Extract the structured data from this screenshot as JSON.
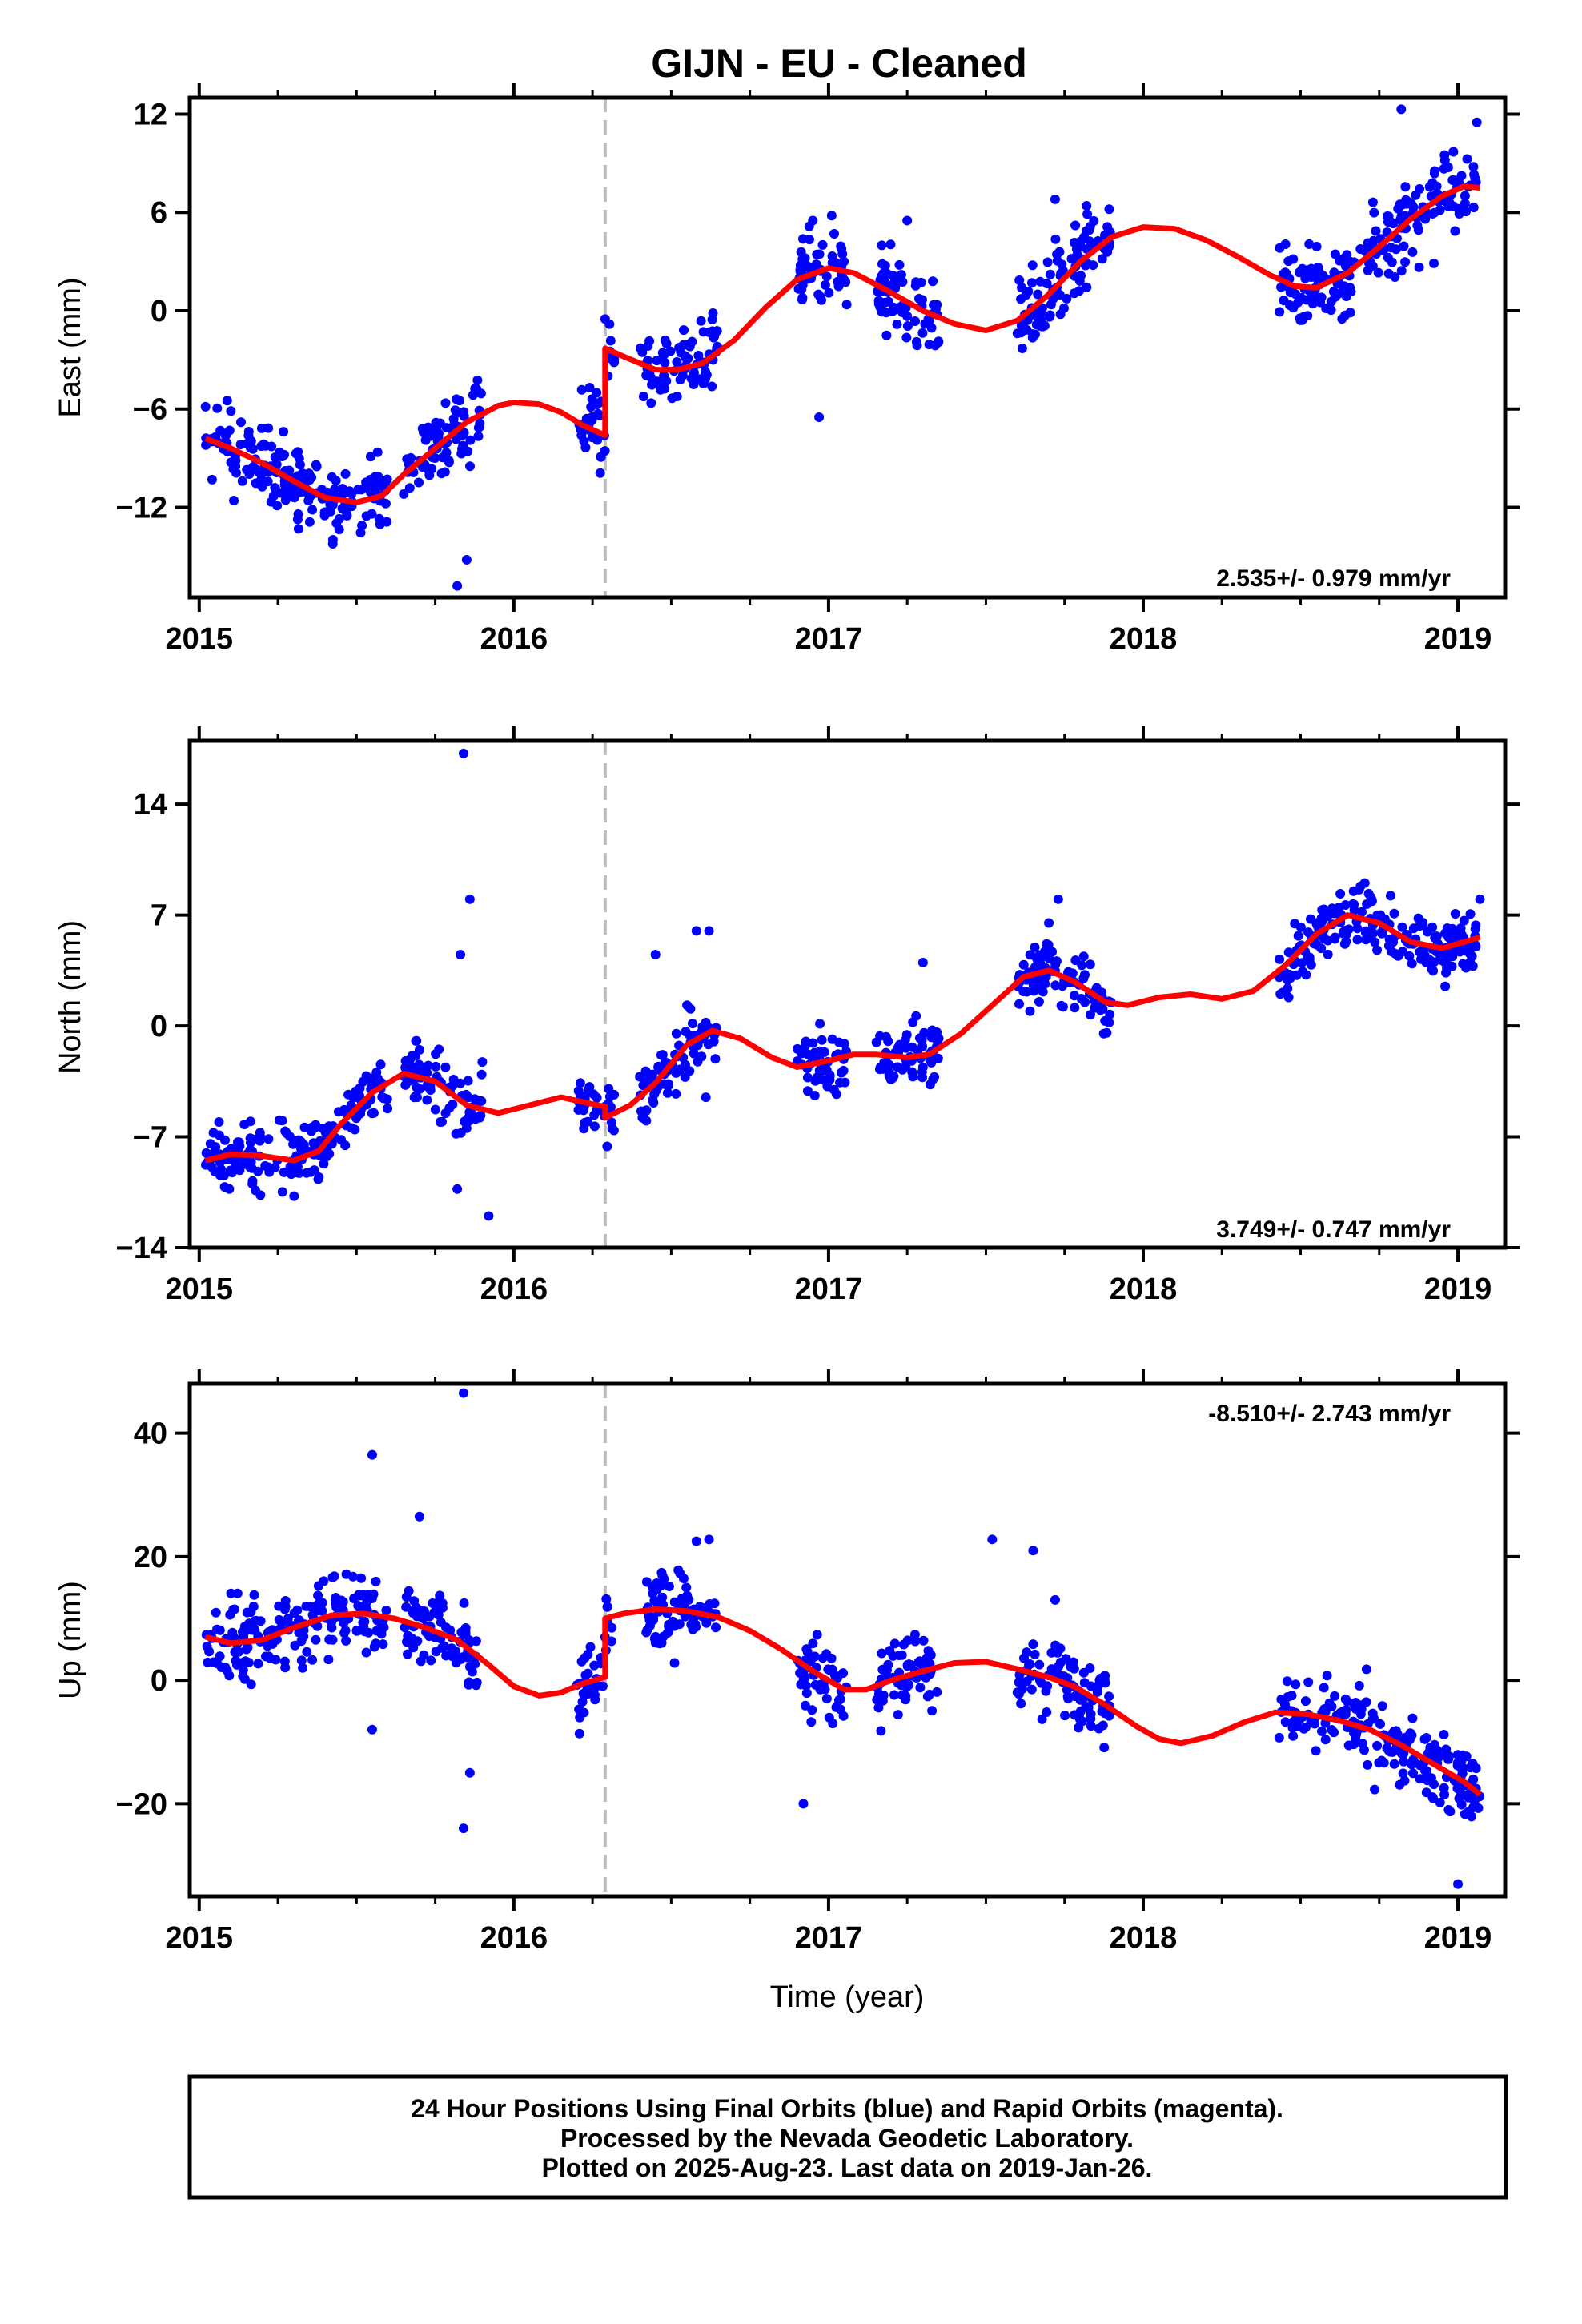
{
  "chart_data": [
    {
      "type": "scatter",
      "title": "GIJN  - EU - Cleaned",
      "ylabel": "East (mm)",
      "xlabel": "",
      "xlim": [
        2014.97,
        2019.15
      ],
      "ylim": [
        -17.5,
        13
      ],
      "xticks": [
        2015,
        2016,
        2017,
        2018,
        2019
      ],
      "yticks": [
        -12,
        -6,
        0,
        6,
        12
      ],
      "yticklabels": [
        "−12",
        "−6",
        "0",
        "6",
        "12"
      ],
      "rate_label": "2.535+/- 0.979 mm/yr",
      "rate_position": "bottom-right",
      "break_epoch": 2016.29,
      "series": [
        {
          "name": "Final Orbits",
          "style": "points",
          "color": "#0000ff",
          "seed": 11,
          "segments": [
            [
              2015.02,
              2015.6
            ],
            [
              2015.65,
              2015.9
            ],
            [
              2016.2,
              2016.32
            ],
            [
              2016.4,
              2016.65
            ],
            [
              2016.9,
              2017.06
            ],
            [
              2017.15,
              2017.35
            ],
            [
              2017.6,
              2017.9
            ],
            [
              2018.43,
              2019.07
            ]
          ],
          "scatter": 1.6,
          "outliers": [
            [
              2015.85,
              -15.2
            ],
            [
              2015.82,
              -16.8
            ],
            [
              2016.29,
              -0.5
            ],
            [
              2016.95,
              5.5
            ],
            [
              2017.01,
              5.8
            ],
            [
              2016.97,
              -6.5
            ],
            [
              2017.25,
              5.5
            ],
            [
              2017.72,
              6.8
            ],
            [
              2017.82,
              6.4
            ],
            [
              2018.82,
              12.3
            ],
            [
              2019.06,
              11.5
            ]
          ]
        },
        {
          "name": "Model",
          "style": "line",
          "color": "#ff0000",
          "points": [
            [
              2015.02,
              -7.8
            ],
            [
              2015.1,
              -8.4
            ],
            [
              2015.2,
              -9.3
            ],
            [
              2015.3,
              -10.4
            ],
            [
              2015.4,
              -11.4
            ],
            [
              2015.5,
              -11.7
            ],
            [
              2015.58,
              -11.3
            ],
            [
              2015.65,
              -10.0
            ],
            [
              2015.75,
              -8.4
            ],
            [
              2015.85,
              -6.8
            ],
            [
              2015.95,
              -5.8
            ],
            [
              2016.0,
              -5.6
            ],
            [
              2016.08,
              -5.7
            ],
            [
              2016.15,
              -6.2
            ],
            [
              2016.22,
              -7.0
            ],
            [
              2016.29,
              -7.6
            ],
            [
              2016.29,
              -2.3
            ],
            [
              2016.35,
              -2.8
            ],
            [
              2016.45,
              -3.6
            ],
            [
              2016.52,
              -3.6
            ],
            [
              2016.6,
              -3.2
            ],
            [
              2016.7,
              -1.8
            ],
            [
              2016.8,
              0.2
            ],
            [
              2016.9,
              1.9
            ],
            [
              2017.0,
              2.6
            ],
            [
              2017.08,
              2.3
            ],
            [
              2017.18,
              1.3
            ],
            [
              2017.3,
              0.0
            ],
            [
              2017.4,
              -0.8
            ],
            [
              2017.5,
              -1.2
            ],
            [
              2017.6,
              -0.6
            ],
            [
              2017.7,
              1.0
            ],
            [
              2017.8,
              3.0
            ],
            [
              2017.9,
              4.5
            ],
            [
              2018.0,
              5.1
            ],
            [
              2018.1,
              5.0
            ],
            [
              2018.2,
              4.3
            ],
            [
              2018.3,
              3.3
            ],
            [
              2018.4,
              2.2
            ],
            [
              2018.48,
              1.5
            ],
            [
              2018.55,
              1.4
            ],
            [
              2018.65,
              2.3
            ],
            [
              2018.75,
              3.9
            ],
            [
              2018.85,
              5.6
            ],
            [
              2018.95,
              7.0
            ],
            [
              2019.02,
              7.6
            ],
            [
              2019.07,
              7.5
            ]
          ]
        }
      ]
    },
    {
      "type": "scatter",
      "title": "",
      "ylabel": "North (mm)",
      "xlabel": "",
      "xlim": [
        2014.97,
        2019.15
      ],
      "ylim": [
        -14,
        18
      ],
      "xticks": [
        2015,
        2016,
        2017,
        2018,
        2019
      ],
      "yticks": [
        -14,
        -7,
        0,
        7,
        14
      ],
      "yticklabels": [
        "−14",
        "−7",
        "0",
        "7",
        "14"
      ],
      "rate_label": "3.749+/- 0.747 mm/yr",
      "rate_position": "bottom-right",
      "break_epoch": 2016.29,
      "series": [
        {
          "name": "Final Orbits",
          "style": "points",
          "color": "#0000ff",
          "seed": 23,
          "segments": [
            [
              2015.02,
              2015.6
            ],
            [
              2015.65,
              2015.9
            ],
            [
              2016.2,
              2016.32
            ],
            [
              2016.4,
              2016.65
            ],
            [
              2016.9,
              2017.06
            ],
            [
              2017.15,
              2017.35
            ],
            [
              2017.6,
              2017.9
            ],
            [
              2018.43,
              2019.07
            ]
          ],
          "scatter": 1.4,
          "outliers": [
            [
              2015.84,
              17.2
            ],
            [
              2015.86,
              8.0
            ],
            [
              2015.83,
              4.5
            ],
            [
              2015.92,
              -12.0
            ],
            [
              2015.82,
              -10.3
            ],
            [
              2016.45,
              4.5
            ],
            [
              2016.58,
              6.0
            ],
            [
              2016.62,
              6.0
            ],
            [
              2016.61,
              -4.5
            ],
            [
              2017.3,
              4.0
            ],
            [
              2017.73,
              8.0
            ],
            [
              2017.7,
              6.5
            ],
            [
              2019.07,
              8.0
            ]
          ]
        },
        {
          "name": "Model",
          "style": "line",
          "color": "#ff0000",
          "points": [
            [
              2015.02,
              -8.5
            ],
            [
              2015.1,
              -8.1
            ],
            [
              2015.2,
              -8.2
            ],
            [
              2015.3,
              -8.5
            ],
            [
              2015.38,
              -7.9
            ],
            [
              2015.45,
              -6.2
            ],
            [
              2015.55,
              -4.2
            ],
            [
              2015.65,
              -3.0
            ],
            [
              2015.75,
              -3.5
            ],
            [
              2015.85,
              -5.0
            ],
            [
              2015.95,
              -5.5
            ],
            [
              2016.05,
              -5.0
            ],
            [
              2016.15,
              -4.5
            ],
            [
              2016.22,
              -4.8
            ],
            [
              2016.29,
              -5.1
            ],
            [
              2016.29,
              -5.8
            ],
            [
              2016.37,
              -5.0
            ],
            [
              2016.45,
              -3.6
            ],
            [
              2016.55,
              -1.2
            ],
            [
              2016.63,
              -0.3
            ],
            [
              2016.72,
              -0.8
            ],
            [
              2016.82,
              -2.0
            ],
            [
              2016.9,
              -2.6
            ],
            [
              2017.0,
              -2.2
            ],
            [
              2017.08,
              -1.8
            ],
            [
              2017.15,
              -1.8
            ],
            [
              2017.25,
              -2.0
            ],
            [
              2017.32,
              -1.8
            ],
            [
              2017.42,
              -0.5
            ],
            [
              2017.52,
              1.3
            ],
            [
              2017.62,
              3.1
            ],
            [
              2017.7,
              3.5
            ],
            [
              2017.78,
              2.8
            ],
            [
              2017.88,
              1.5
            ],
            [
              2017.95,
              1.3
            ],
            [
              2018.05,
              1.8
            ],
            [
              2018.15,
              2.0
            ],
            [
              2018.25,
              1.7
            ],
            [
              2018.35,
              2.2
            ],
            [
              2018.45,
              3.8
            ],
            [
              2018.55,
              5.8
            ],
            [
              2018.65,
              7.0
            ],
            [
              2018.75,
              6.5
            ],
            [
              2018.85,
              5.3
            ],
            [
              2018.95,
              4.9
            ],
            [
              2019.07,
              5.6
            ]
          ]
        }
      ]
    },
    {
      "type": "scatter",
      "title": "",
      "ylabel": "Up (mm)",
      "xlabel": "Time (year)",
      "xlim": [
        2014.97,
        2019.15
      ],
      "ylim": [
        -35,
        48
      ],
      "xticks": [
        2015,
        2016,
        2017,
        2018,
        2019
      ],
      "yticks": [
        -20,
        0,
        20,
        40
      ],
      "yticklabels": [
        "−20",
        "0",
        "20",
        "40"
      ],
      "rate_label": "-8.510+/- 2.743 mm/yr",
      "rate_position": "top-right",
      "break_epoch": 2016.29,
      "series": [
        {
          "name": "Final Orbits",
          "style": "points",
          "color": "#0000ff",
          "seed": 37,
          "segments": [
            [
              2015.02,
              2015.6
            ],
            [
              2015.65,
              2015.9
            ],
            [
              2016.2,
              2016.32
            ],
            [
              2016.4,
              2016.65
            ],
            [
              2016.9,
              2017.06
            ],
            [
              2017.15,
              2017.35
            ],
            [
              2017.6,
              2017.9
            ],
            [
              2018.43,
              2019.07
            ]
          ],
          "scatter": 4.5,
          "outliers": [
            [
              2015.84,
              46.5
            ],
            [
              2015.55,
              36.5
            ],
            [
              2015.7,
              26.5
            ],
            [
              2015.84,
              -24.0
            ],
            [
              2015.86,
              -15.0
            ],
            [
              2015.55,
              -8.0
            ],
            [
              2016.58,
              22.5
            ],
            [
              2016.62,
              22.8
            ],
            [
              2016.92,
              -20.0
            ],
            [
              2017.52,
              22.8
            ],
            [
              2017.65,
              21.0
            ],
            [
              2017.72,
              13.0
            ],
            [
              2019.0,
              -33.0
            ]
          ]
        },
        {
          "name": "Model",
          "style": "line",
          "color": "#ff0000",
          "points": [
            [
              2015.02,
              7.0
            ],
            [
              2015.1,
              6.0
            ],
            [
              2015.2,
              6.5
            ],
            [
              2015.3,
              8.5
            ],
            [
              2015.42,
              10.5
            ],
            [
              2015.52,
              10.8
            ],
            [
              2015.62,
              10.0
            ],
            [
              2015.72,
              8.5
            ],
            [
              2015.82,
              6.5
            ],
            [
              2015.92,
              2.5
            ],
            [
              2016.0,
              -1.0
            ],
            [
              2016.08,
              -2.5
            ],
            [
              2016.15,
              -2.0
            ],
            [
              2016.22,
              -0.5
            ],
            [
              2016.29,
              0.5
            ],
            [
              2016.29,
              10.0
            ],
            [
              2016.35,
              10.8
            ],
            [
              2016.45,
              11.5
            ],
            [
              2016.55,
              11.2
            ],
            [
              2016.65,
              10.2
            ],
            [
              2016.75,
              8.0
            ],
            [
              2016.85,
              5.0
            ],
            [
              2016.95,
              1.5
            ],
            [
              2017.05,
              -1.5
            ],
            [
              2017.12,
              -1.5
            ],
            [
              2017.2,
              0.0
            ],
            [
              2017.3,
              1.5
            ],
            [
              2017.4,
              2.8
            ],
            [
              2017.5,
              3.0
            ],
            [
              2017.6,
              1.8
            ],
            [
              2017.7,
              0.5
            ],
            [
              2017.78,
              -1.0
            ],
            [
              2017.88,
              -4.0
            ],
            [
              2017.98,
              -7.5
            ],
            [
              2018.05,
              -9.5
            ],
            [
              2018.12,
              -10.2
            ],
            [
              2018.22,
              -9.0
            ],
            [
              2018.32,
              -6.8
            ],
            [
              2018.42,
              -5.2
            ],
            [
              2018.52,
              -5.5
            ],
            [
              2018.62,
              -6.5
            ],
            [
              2018.72,
              -8.0
            ],
            [
              2018.82,
              -10.5
            ],
            [
              2018.92,
              -13.5
            ],
            [
              2019.02,
              -16.5
            ],
            [
              2019.07,
              -18.5
            ]
          ]
        }
      ]
    }
  ],
  "caption": {
    "line1": "24 Hour Positions Using Final Orbits (blue) and Rapid Orbits (magenta).",
    "line2": "Processed by the Nevada Geodetic Laboratory.",
    "line3": "Plotted on 2025-Aug-23. Last data on 2019-Jan-26."
  },
  "colors": {
    "points": "#0000ff",
    "model": "#ff0000",
    "break_line": "#bbbbbb",
    "frame": "#000000"
  }
}
